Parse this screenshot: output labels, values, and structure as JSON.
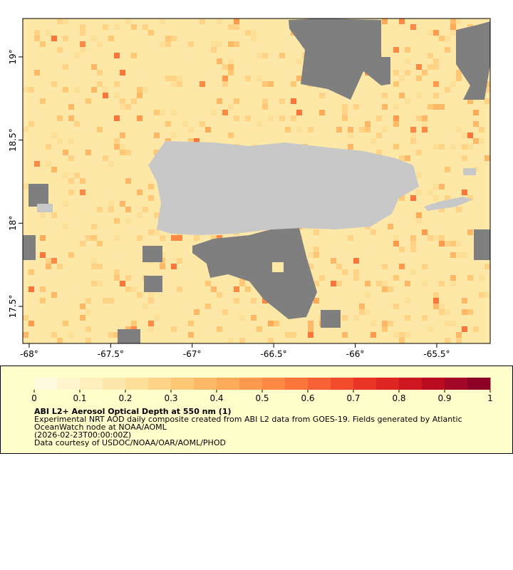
{
  "map": {
    "xlim": [
      -68.039,
      -65.172
    ],
    "ylim": [
      17.277,
      19.231
    ],
    "xticks": [
      {
        "value": -68,
        "label": "-68°"
      },
      {
        "value": -67.5,
        "label": "-67.5°"
      },
      {
        "value": -67,
        "label": "-67°"
      },
      {
        "value": -66.5,
        "label": "-66.5°"
      },
      {
        "value": -66,
        "label": "-66°"
      },
      {
        "value": -65.5,
        "label": "-65.5°"
      }
    ],
    "yticks": [
      {
        "value": 17.5,
        "label": "17.5°"
      },
      {
        "value": 18,
        "label": "18°"
      },
      {
        "value": 18.5,
        "label": "18.5°"
      },
      {
        "value": 19,
        "label": "19°"
      }
    ]
  },
  "colorbar": {
    "range": [
      0,
      1
    ],
    "ticks": [
      0,
      0.1,
      0.2,
      0.3,
      0.4,
      0.5,
      0.6,
      0.7,
      0.8,
      0.9,
      1
    ],
    "colors": [
      "#fffbe0",
      "#fff5cf",
      "#ffefbd",
      "#fee7aa",
      "#fedf98",
      "#fed386",
      "#fec776",
      "#fdb966",
      "#fdab58",
      "#fd9a4d",
      "#fc8843",
      "#fb763b",
      "#f86134",
      "#f24b2d",
      "#ea3627",
      "#dd2522",
      "#cd1820",
      "#bb0d22",
      "#a40625",
      "#8c0026"
    ]
  },
  "caption": {
    "title": "ABI L2+ Aerosol Optical Depth at 550 nm (1)",
    "lines": [
      "Experimental NRT AOD daily composite created from ABI L2 data from GOES-19. Fields generated by Atlantic",
      "OceanWatch node at NOAA/AOML",
      "(2026-02-23T00:00:00Z)",
      "Data courtesy of USDOC/NOAA/OAR/AOML/PHOD"
    ]
  }
}
